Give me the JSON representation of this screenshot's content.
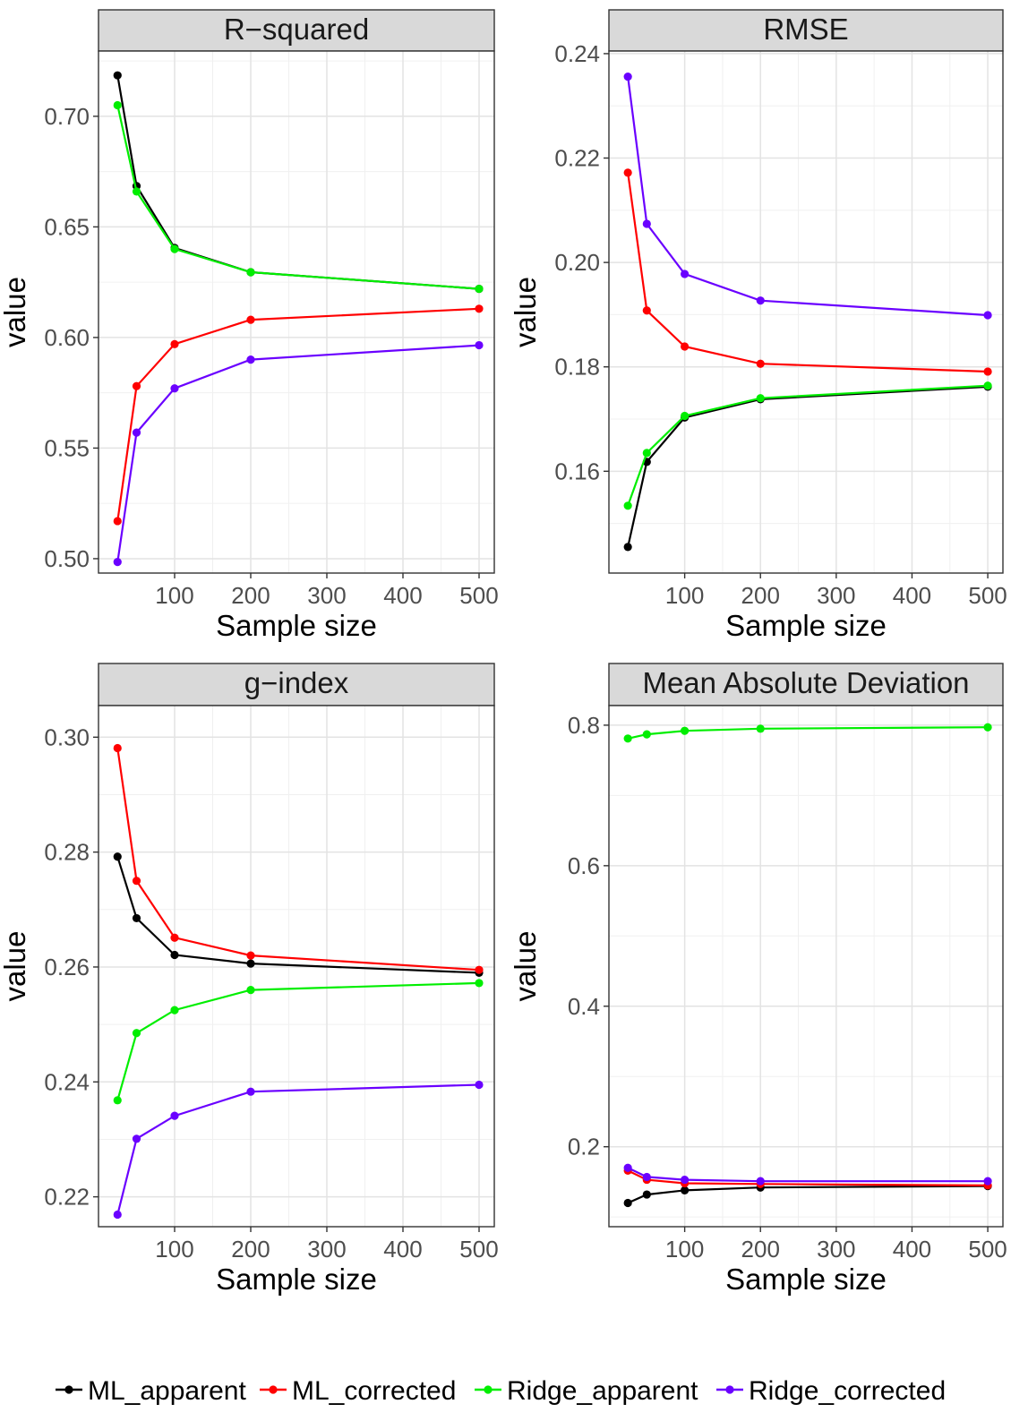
{
  "chart_data": {
    "type": "line",
    "layout": "2x2 facet grid",
    "shared": {
      "x": [
        25,
        50,
        100,
        200,
        500
      ],
      "xlabel": "Sample size",
      "ylabel": "value",
      "xlim": [
        0,
        520
      ],
      "xticks": [
        100,
        200,
        300,
        400,
        500
      ],
      "grid": true,
      "legend_position": "bottom"
    },
    "legend": [
      {
        "name": "ML_apparent",
        "color": "#000000"
      },
      {
        "name": "ML_corrected",
        "color": "#ff0000"
      },
      {
        "name": "Ridge_apparent",
        "color": "#00ee00"
      },
      {
        "name": "Ridge_corrected",
        "color": "#6a00ff"
      }
    ],
    "panels": [
      {
        "title": "R−squared",
        "ylim": [
          0.4935,
          0.7295
        ],
        "yticks": [
          0.5,
          0.55,
          0.6,
          0.65,
          0.7
        ],
        "ytick_labels": [
          "0.50",
          "0.55",
          "0.60",
          "0.65",
          "0.70"
        ],
        "series": [
          {
            "name": "ML_apparent",
            "values": [
              0.7185,
              0.6685,
              0.6405,
              0.6295,
              0.622
            ]
          },
          {
            "name": "ML_corrected",
            "values": [
              0.517,
              0.578,
              0.597,
              0.608,
              0.613
            ]
          },
          {
            "name": "Ridge_apparent",
            "values": [
              0.705,
              0.666,
              0.64,
              0.6295,
              0.622
            ]
          },
          {
            "name": "Ridge_corrected",
            "values": [
              0.4985,
              0.557,
              0.577,
              0.59,
              0.5965
            ]
          }
        ]
      },
      {
        "title": "RMSE",
        "ylim": [
          0.1405,
          0.2405
        ],
        "yticks": [
          0.16,
          0.18,
          0.2,
          0.22,
          0.24
        ],
        "ytick_labels": [
          "0.16",
          "0.18",
          "0.20",
          "0.22",
          "0.24"
        ],
        "series": [
          {
            "name": "ML_apparent",
            "values": [
              0.1455,
              0.1618,
              0.1703,
              0.1738,
              0.1762
            ]
          },
          {
            "name": "ML_corrected",
            "values": [
              0.2172,
              0.1908,
              0.1839,
              0.1806,
              0.1791
            ]
          },
          {
            "name": "Ridge_apparent",
            "values": [
              0.1534,
              0.1635,
              0.1706,
              0.174,
              0.1764
            ]
          },
          {
            "name": "Ridge_corrected",
            "values": [
              0.2356,
              0.2074,
              0.1978,
              0.1927,
              0.1899
            ]
          }
        ]
      },
      {
        "title": "g−index",
        "ylim": [
          0.2148,
          0.3055
        ],
        "yticks": [
          0.22,
          0.24,
          0.26,
          0.28,
          0.3
        ],
        "ytick_labels": [
          "0.22",
          "0.24",
          "0.26",
          "0.28",
          "0.30"
        ],
        "series": [
          {
            "name": "ML_apparent",
            "values": [
              0.2792,
              0.2685,
              0.2621,
              0.2606,
              0.259
            ]
          },
          {
            "name": "ML_corrected",
            "values": [
              0.2981,
              0.275,
              0.2651,
              0.262,
              0.2595
            ]
          },
          {
            "name": "Ridge_apparent",
            "values": [
              0.2368,
              0.2485,
              0.2525,
              0.256,
              0.2572
            ]
          },
          {
            "name": "Ridge_corrected",
            "values": [
              0.2169,
              0.2301,
              0.2341,
              0.2383,
              0.2395
            ]
          }
        ]
      },
      {
        "title": "Mean Absolute Deviation",
        "ylim": [
          0.0862,
          0.8279
        ],
        "yticks": [
          0.2,
          0.4,
          0.6,
          0.8
        ],
        "ytick_labels": [
          "0.2",
          "0.4",
          "0.6",
          "0.8"
        ],
        "series": [
          {
            "name": "ML_apparent",
            "values": [
              0.12,
              0.132,
              0.138,
              0.142,
              0.144
            ]
          },
          {
            "name": "ML_corrected",
            "values": [
              0.166,
              0.153,
              0.148,
              0.147,
              0.145
            ]
          },
          {
            "name": "Ridge_apparent",
            "values": [
              0.781,
              0.787,
              0.792,
              0.795,
              0.797
            ]
          },
          {
            "name": "Ridge_corrected",
            "values": [
              0.17,
              0.157,
              0.153,
              0.151,
              0.151
            ]
          }
        ]
      }
    ]
  }
}
